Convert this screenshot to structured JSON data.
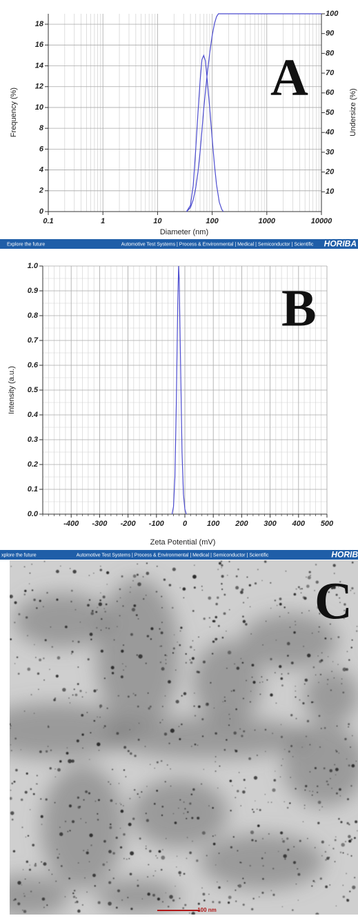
{
  "chart_data": [
    {
      "type": "line",
      "label": "A",
      "xlabel": "Diameter (nm)",
      "ylabel": "Frequency (%)",
      "y2label": "Undersize (%)",
      "xscale": "log",
      "xlim": [
        0.1,
        10000
      ],
      "xticks": [
        0.1,
        1,
        10,
        100,
        1000,
        10000
      ],
      "ylim": [
        0,
        19
      ],
      "yticks": [
        0,
        2,
        4,
        6,
        8,
        10,
        12,
        14,
        16,
        18
      ],
      "y2lim": [
        0,
        100
      ],
      "y2ticks": [
        10,
        20,
        30,
        40,
        50,
        60,
        70,
        80,
        90,
        100
      ],
      "grid": true,
      "series": [
        {
          "color": "#4b4bcf",
          "x": [
            34,
            40,
            45,
            50,
            55,
            60,
            65,
            70,
            75,
            80,
            90,
            100,
            110,
            120,
            135,
            150,
            160
          ],
          "values": [
            0,
            0.6,
            2.5,
            6,
            9.5,
            12.5,
            14.6,
            15,
            14.5,
            13,
            10,
            7,
            4.5,
            2.6,
            0.9,
            0.2,
            0
          ]
        },
        {
          "color": "#4b4bcf",
          "axis": "y2",
          "x": [
            34,
            40,
            45,
            50,
            55,
            60,
            65,
            70,
            80,
            90,
            100,
            110,
            120,
            130,
            10000
          ],
          "values": [
            0,
            2,
            6,
            12,
            20,
            30,
            41,
            52,
            68,
            80,
            89,
            95,
            98.5,
            100,
            100
          ]
        }
      ]
    },
    {
      "type": "line",
      "label": "B",
      "xlabel": "Zeta Potential (mV)",
      "ylabel": "Intensity (a.u.)",
      "xlim": [
        -500,
        500
      ],
      "xticks": [
        -400,
        -300,
        -200,
        -100,
        0,
        100,
        200,
        300,
        400,
        500
      ],
      "ylim": [
        0,
        1
      ],
      "yticks": [
        {
          "value": 0,
          "label": "0.0"
        },
        0.1,
        0.2,
        0.3,
        0.4,
        0.5,
        0.6,
        0.7,
        0.8,
        0.9,
        {
          "value": 1,
          "label": "1.0"
        }
      ],
      "grid": true,
      "series": [
        {
          "color": "#4b4bcf",
          "x": [
            -45,
            -40,
            -35,
            -30,
            -25,
            -22,
            -20,
            -15,
            -10,
            -5,
            0,
            5
          ],
          "values": [
            0,
            0.03,
            0.15,
            0.45,
            0.85,
            1,
            0.95,
            0.6,
            0.25,
            0.08,
            0.02,
            0
          ]
        }
      ]
    }
  ],
  "banners": [
    {
      "left": "Explore the future",
      "middle": "Automotive Test Systems | Process & Environmental | Medical | Semiconductor | Scientific",
      "right": "HORIBA"
    },
    {
      "left": "xplore the future",
      "middle": "Automotive Test Systems | Process & Environmental | Medical | Semiconductor | Scientific",
      "right": "HORIB"
    }
  ],
  "image": {
    "label": "C",
    "scale_bar": "100 nm"
  }
}
